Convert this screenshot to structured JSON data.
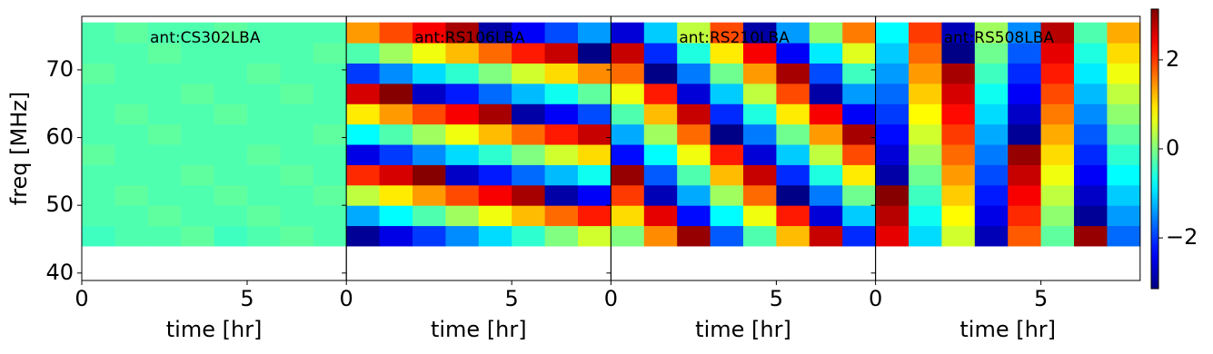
{
  "chart_data": [
    {
      "type": "heatmap",
      "title": "ant:CS302LBA",
      "xlabel": "time [hr]",
      "ylabel": "freq [MHz]",
      "xlim": [
        0,
        8
      ],
      "ylim": [
        38.9,
        77.9
      ],
      "xticks": [
        0,
        5
      ],
      "yticks": [
        40,
        50,
        60,
        70
      ],
      "x_edges": [
        0,
        1,
        2,
        3,
        4,
        5,
        6,
        7,
        8
      ],
      "y_edges": [
        44,
        47,
        50,
        53,
        56,
        59,
        62,
        65,
        68,
        71,
        74,
        77
      ],
      "z": [
        [
          -0.4,
          -0.3,
          -0.3,
          -0.2,
          -0.4,
          -0.3,
          -0.2,
          -0.3
        ],
        [
          -0.3,
          -0.3,
          -0.2,
          -0.3,
          -0.3,
          -0.2,
          -0.3,
          -0.3
        ],
        [
          -0.3,
          -0.2,
          -0.3,
          -0.3,
          -0.2,
          -0.3,
          -0.3,
          -0.2
        ],
        [
          -0.3,
          -0.3,
          -0.3,
          -0.2,
          -0.3,
          -0.3,
          -0.2,
          -0.3
        ],
        [
          -0.2,
          -0.3,
          -0.3,
          -0.3,
          -0.3,
          -0.2,
          -0.3,
          -0.3
        ],
        [
          -0.3,
          -0.3,
          -0.2,
          -0.3,
          -0.3,
          -0.3,
          -0.3,
          -0.2
        ],
        [
          -0.3,
          -0.2,
          -0.3,
          -0.3,
          -0.2,
          -0.3,
          -0.3,
          -0.3
        ],
        [
          -0.3,
          -0.3,
          -0.3,
          -0.2,
          -0.3,
          -0.3,
          -0.2,
          -0.3
        ],
        [
          -0.2,
          -0.3,
          -0.3,
          -0.3,
          -0.3,
          -0.2,
          -0.3,
          -0.3
        ],
        [
          -0.3,
          -0.3,
          -0.2,
          -0.3,
          -0.3,
          -0.3,
          -0.3,
          -0.2
        ],
        [
          -0.3,
          -0.2,
          -0.3,
          -0.3,
          -0.2,
          -0.3,
          -0.3,
          -0.3
        ]
      ]
    },
    {
      "type": "heatmap",
      "title": "ant:RS106LBA",
      "xlabel": "time [hr]",
      "xlim": [
        0,
        8
      ],
      "ylim": [
        38.9,
        77.9
      ],
      "xticks": [
        0,
        5
      ],
      "yticks": [
        40,
        50,
        60,
        70
      ],
      "x_edges": [
        0,
        1,
        2,
        3,
        4,
        5,
        6,
        7,
        8
      ],
      "y_edges": [
        44,
        47,
        50,
        53,
        56,
        59,
        62,
        65,
        68,
        71,
        74,
        77
      ],
      "z": [
        [
          -3.0,
          -2.5,
          -2.0,
          -1.5,
          -1.0,
          -0.5,
          0.0,
          0.5
        ],
        [
          -1.3,
          -0.8,
          -0.3,
          0.2,
          0.7,
          1.2,
          1.7,
          2.2
        ],
        [
          0.4,
          0.9,
          1.4,
          1.9,
          2.4,
          2.9,
          -2.9,
          -2.4
        ],
        [
          2.1,
          2.6,
          3.1,
          -2.7,
          -2.2,
          -1.7,
          -1.2,
          -0.7
        ],
        [
          -2.5,
          -2.0,
          -1.5,
          -1.0,
          -0.5,
          0.0,
          0.5,
          1.0
        ],
        [
          -0.8,
          -0.3,
          0.2,
          0.7,
          1.2,
          1.7,
          2.2,
          2.7
        ],
        [
          0.9,
          1.4,
          1.9,
          2.4,
          2.9,
          -2.9,
          -2.4,
          -1.9
        ],
        [
          2.6,
          3.1,
          -2.7,
          -2.2,
          -1.7,
          -1.2,
          -0.7,
          -0.2
        ],
        [
          -2.0,
          -1.5,
          -1.0,
          -0.5,
          0.0,
          0.5,
          1.0,
          1.5
        ],
        [
          -0.3,
          0.2,
          0.7,
          1.2,
          1.7,
          2.2,
          2.7,
          -3.1
        ],
        [
          1.4,
          1.9,
          2.4,
          2.9,
          -2.9,
          -2.4,
          -1.9,
          -1.4
        ]
      ]
    },
    {
      "type": "heatmap",
      "title": "ant:RS210LBA",
      "xlabel": "time [hr]",
      "xlim": [
        0,
        8
      ],
      "ylim": [
        38.9,
        77.9
      ],
      "xticks": [
        0,
        5
      ],
      "yticks": [
        40,
        50,
        60,
        70
      ],
      "x_edges": [
        0,
        1,
        2,
        3,
        4,
        5,
        6,
        7,
        8
      ],
      "y_edges": [
        44,
        47,
        50,
        53,
        56,
        59,
        62,
        65,
        68,
        71,
        74,
        77
      ],
      "z": [
        [
          0.0,
          1.5,
          3.0,
          -1.8,
          -0.3,
          1.2,
          2.7,
          -2.1
        ],
        [
          1.0,
          2.5,
          -2.3,
          -0.8,
          0.7,
          2.2,
          -2.6,
          -1.1
        ],
        [
          2.0,
          -2.8,
          -1.3,
          0.2,
          1.7,
          -3.1,
          -1.6,
          -0.1
        ],
        [
          3.0,
          -1.8,
          -0.3,
          1.2,
          2.7,
          -2.1,
          -0.6,
          0.9
        ],
        [
          -2.3,
          -0.8,
          0.7,
          2.2,
          -2.6,
          -1.1,
          0.4,
          1.9
        ],
        [
          -1.3,
          0.2,
          1.7,
          -3.1,
          -1.6,
          -0.1,
          1.4,
          2.9
        ],
        [
          -0.3,
          1.2,
          2.7,
          -2.1,
          -0.6,
          0.9,
          2.4,
          -2.4
        ],
        [
          0.7,
          2.2,
          -2.6,
          -1.1,
          0.4,
          1.9,
          -2.9,
          -1.4
        ],
        [
          1.7,
          -3.1,
          -1.6,
          -0.1,
          1.4,
          2.9,
          -1.9,
          -0.4
        ],
        [
          2.7,
          -2.1,
          -0.6,
          0.9,
          2.4,
          -2.4,
          -0.9,
          0.6
        ],
        [
          -2.6,
          -1.1,
          0.4,
          1.9,
          -2.9,
          -1.4,
          0.1,
          1.6
        ]
      ]
    },
    {
      "type": "heatmap",
      "title": "ant:RS508LBA",
      "xlabel": "time [hr]",
      "xlim": [
        0,
        8
      ],
      "ylim": [
        38.9,
        77.9
      ],
      "xticks": [
        0,
        5
      ],
      "yticks": [
        40,
        50,
        60,
        70
      ],
      "x_edges": [
        0,
        1,
        2,
        3,
        4,
        5,
        6,
        7,
        8
      ],
      "y_edges": [
        44,
        47,
        50,
        53,
        56,
        59,
        62,
        65,
        68,
        71,
        74,
        77
      ],
      "z": [
        [
          2.5,
          -1.0,
          0.5,
          -2.8,
          1.8,
          -0.2,
          3.0,
          -1.7
        ],
        [
          2.8,
          -0.7,
          0.8,
          -2.5,
          2.1,
          0.1,
          -3.0,
          -1.4
        ],
        [
          3.1,
          -0.4,
          1.1,
          -2.2,
          2.4,
          0.4,
          -2.7,
          -1.1
        ],
        [
          -2.9,
          -0.1,
          1.4,
          -1.9,
          2.7,
          0.7,
          -2.4,
          -0.8
        ],
        [
          -2.6,
          0.2,
          1.7,
          -1.6,
          3.0,
          1.0,
          -2.1,
          -0.5
        ],
        [
          -2.3,
          0.5,
          2.0,
          -1.3,
          -3.0,
          1.3,
          -1.8,
          -0.2
        ],
        [
          -2.0,
          0.8,
          2.3,
          -1.0,
          -2.7,
          1.6,
          -1.5,
          0.1
        ],
        [
          -1.7,
          1.1,
          2.6,
          -0.7,
          -2.4,
          1.9,
          -1.2,
          0.4
        ],
        [
          -1.4,
          1.4,
          2.9,
          -0.4,
          -2.1,
          2.2,
          -0.9,
          0.7
        ],
        [
          -1.1,
          1.7,
          -3.1,
          -0.1,
          -1.8,
          2.5,
          -0.6,
          1.0
        ],
        [
          -0.8,
          2.0,
          -2.8,
          0.2,
          -1.5,
          2.8,
          -0.3,
          1.3
        ]
      ]
    }
  ],
  "colorbar": {
    "colormap": "jet",
    "lim": [
      -3.14,
      3.14
    ],
    "ticks": [
      {
        "value": -2,
        "label": "−2"
      },
      0,
      2
    ]
  }
}
